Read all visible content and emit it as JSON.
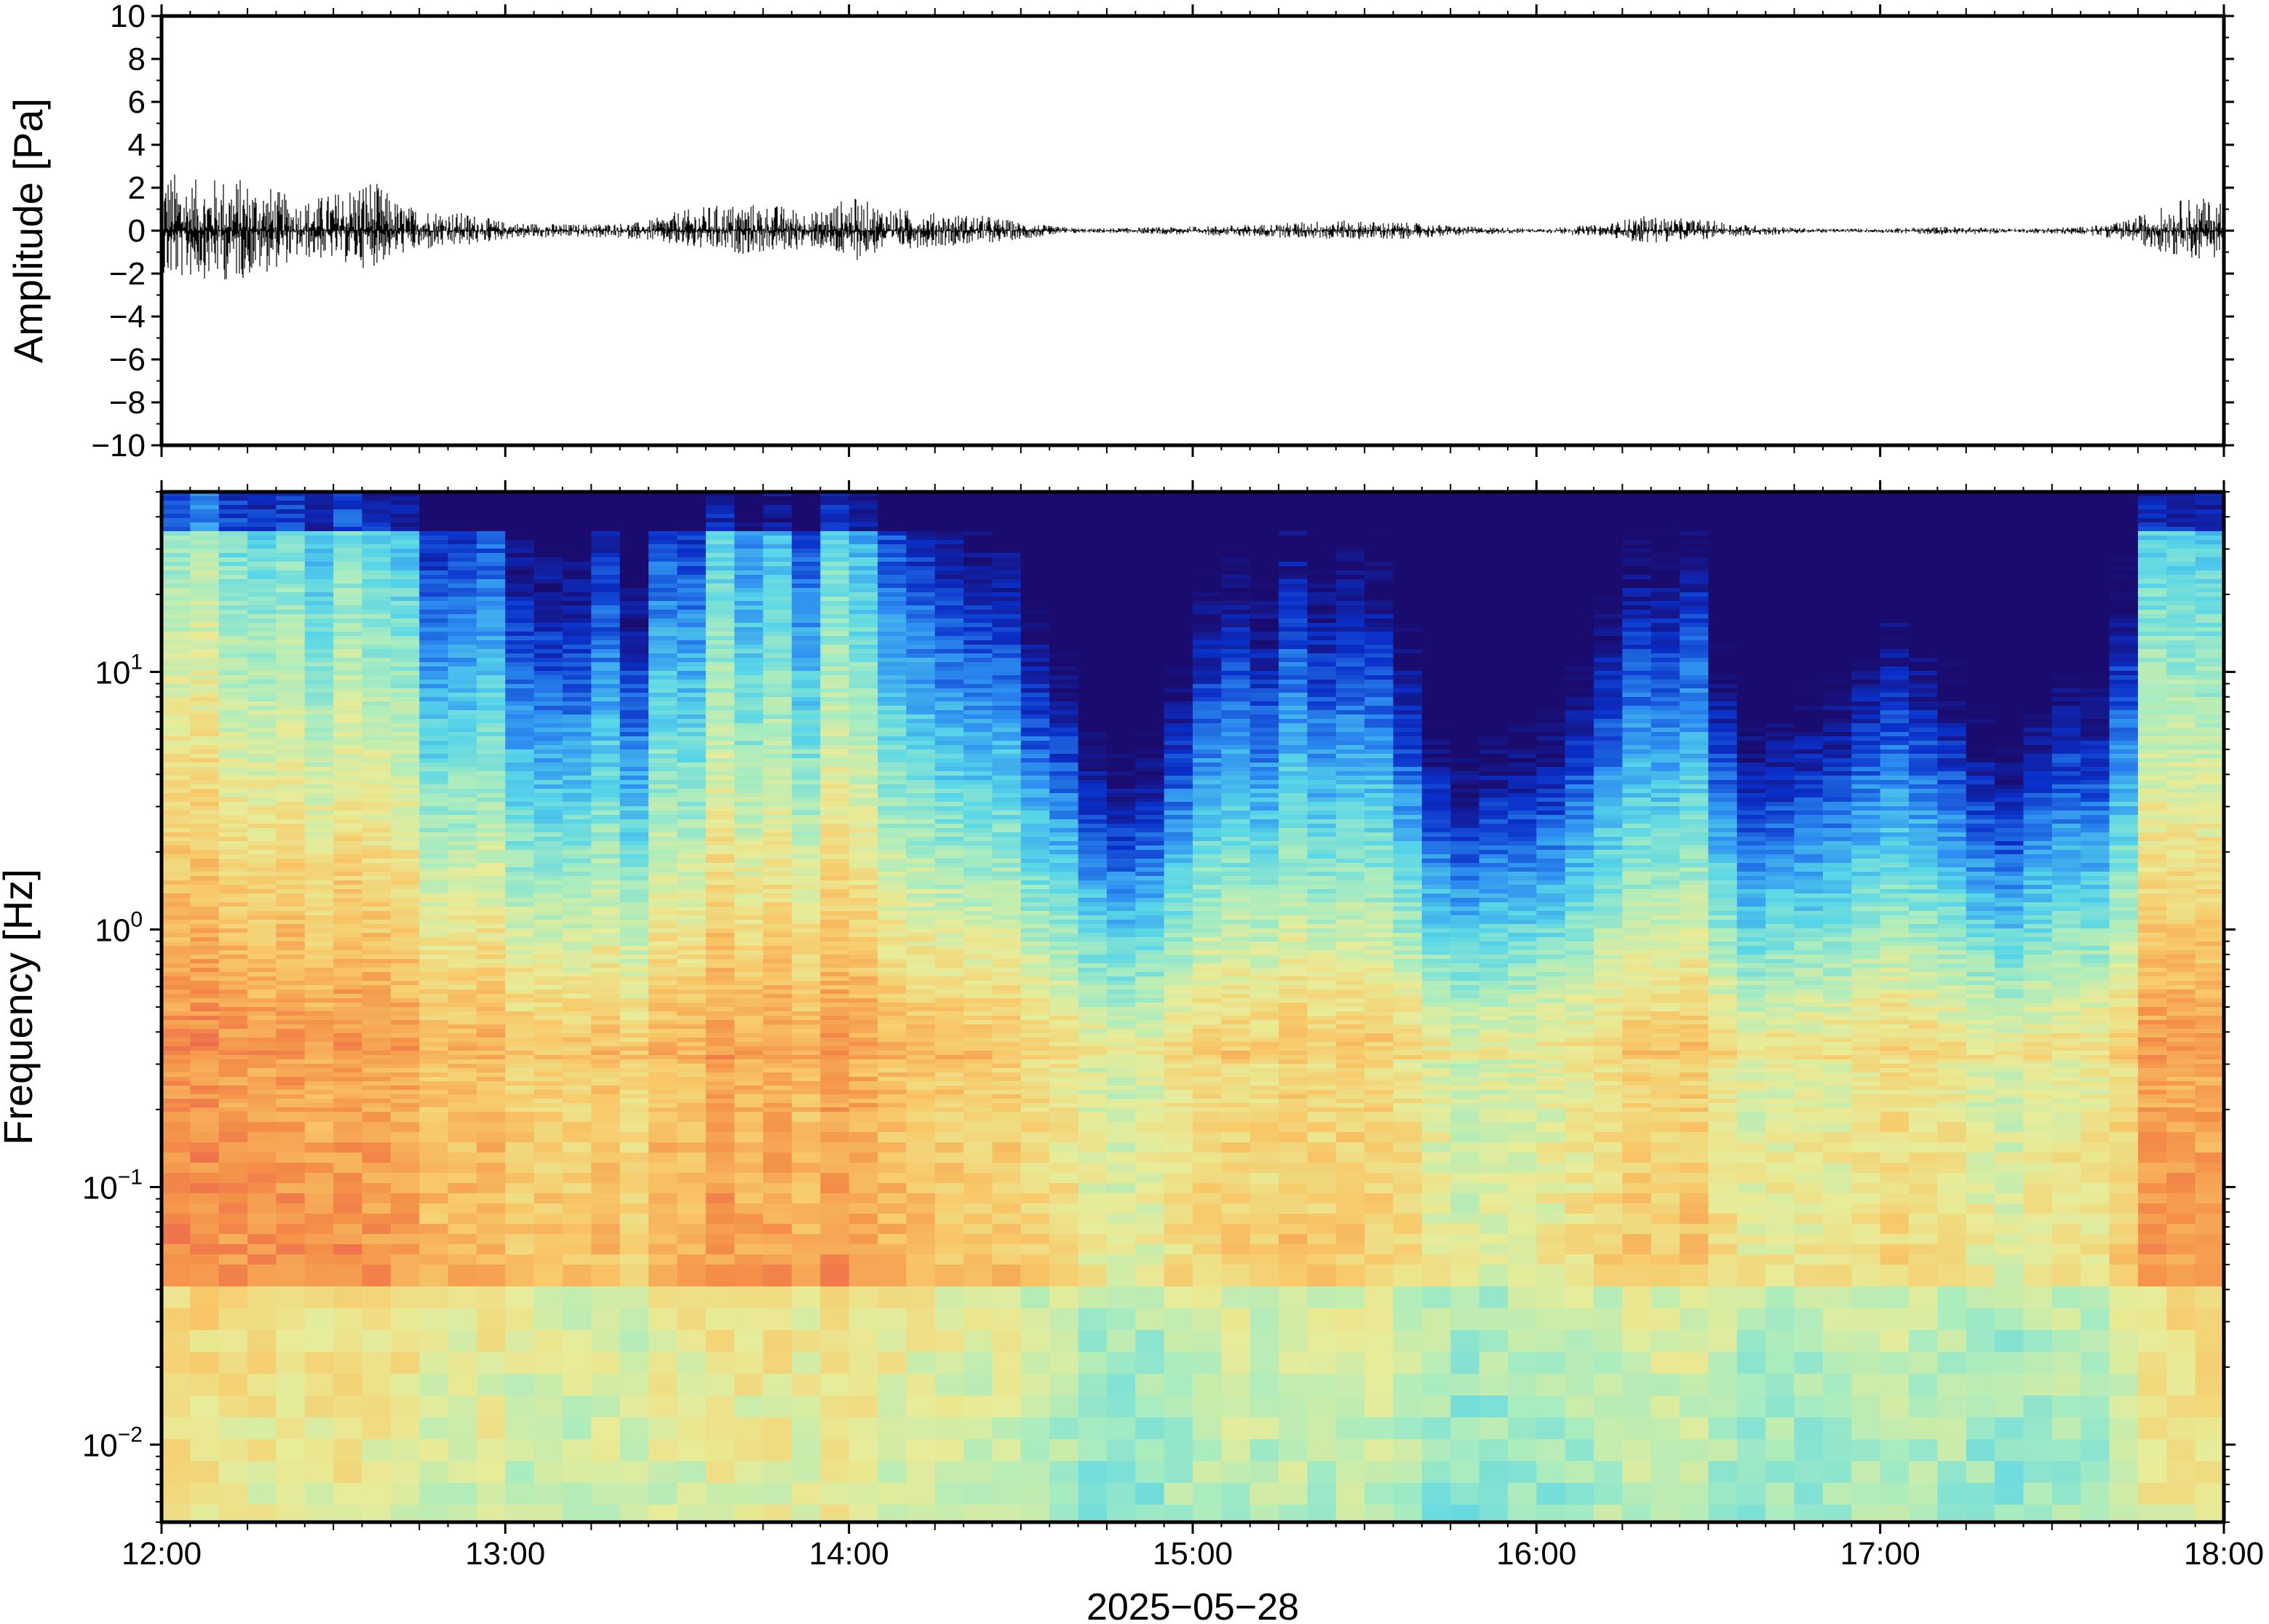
{
  "chart_data": [
    {
      "type": "line",
      "panel": "waveform",
      "ylabel": "Amplitude [Pa]",
      "ylim": [
        -10,
        10
      ],
      "yticks": [
        10,
        8,
        6,
        4,
        2,
        0,
        -2,
        -4,
        -6,
        -8,
        -10
      ],
      "ytick_labels": [
        "10",
        "8",
        "6",
        "4",
        "2",
        "0",
        "−2",
        "−4",
        "−6",
        "−8",
        "−10"
      ],
      "x_range": [
        "12:00",
        "18:00"
      ],
      "series_color": "#000000",
      "envelope": {
        "hours": [
          12.0,
          12.1,
          12.2,
          12.3,
          12.4,
          12.5,
          12.6,
          12.7,
          12.8,
          12.9,
          13.0,
          13.2,
          13.4,
          13.5,
          13.6,
          13.7,
          13.8,
          13.9,
          14.0,
          14.1,
          14.2,
          14.3,
          14.4,
          14.5,
          14.6,
          14.7,
          15.0,
          15.2,
          15.4,
          15.6,
          15.8,
          16.0,
          16.2,
          16.3,
          16.4,
          16.5,
          16.6,
          16.8,
          17.0,
          17.2,
          17.4,
          17.6,
          17.7,
          17.8,
          17.9,
          18.0
        ],
        "max_pa": [
          3.0,
          2.4,
          2.6,
          2.2,
          1.4,
          1.8,
          2.6,
          1.2,
          1.0,
          0.8,
          0.4,
          0.3,
          0.4,
          0.9,
          1.2,
          1.3,
          1.2,
          0.9,
          1.6,
          1.2,
          0.9,
          0.8,
          0.7,
          0.4,
          0.2,
          0.1,
          0.2,
          0.3,
          0.5,
          0.4,
          0.2,
          0.1,
          0.3,
          0.7,
          0.6,
          0.5,
          0.3,
          0.1,
          0.1,
          0.2,
          0.1,
          0.2,
          0.4,
          1.0,
          1.6,
          1.4
        ],
        "min_pa": [
          -2.6,
          -2.2,
          -2.4,
          -2.0,
          -1.3,
          -1.4,
          -1.8,
          -1.1,
          -0.9,
          -0.7,
          -0.4,
          -0.3,
          -0.4,
          -0.8,
          -1.0,
          -1.1,
          -1.0,
          -0.8,
          -1.5,
          -1.0,
          -0.8,
          -0.7,
          -0.6,
          -0.4,
          -0.2,
          -0.1,
          -0.2,
          -0.3,
          -0.4,
          -0.4,
          -0.2,
          -0.1,
          -0.3,
          -0.6,
          -0.5,
          -0.4,
          -0.3,
          -0.1,
          -0.1,
          -0.2,
          -0.1,
          -0.2,
          -0.4,
          -0.9,
          -1.4,
          -1.2
        ]
      }
    },
    {
      "type": "heatmap",
      "panel": "spectrogram",
      "ylabel": "Frequency [Hz]",
      "yscale": "log",
      "ylim_hz": [
        0.005,
        50
      ],
      "yticks_hz": [
        10,
        1,
        0.1,
        0.01
      ],
      "ytick_labels": [
        {
          "base": "10",
          "exp": "1"
        },
        {
          "base": "10",
          "exp": "0"
        },
        {
          "base": "10",
          "exp": "−1"
        },
        {
          "base": "10",
          "exp": "−2"
        }
      ],
      "colormap": "jet",
      "colormap_colors": [
        "#1a0c6e",
        "#0a2fc8",
        "#2c8cf0",
        "#58d6e8",
        "#a8ecc0",
        "#e8ec98",
        "#f8c868",
        "#f49048",
        "#e85050"
      ],
      "activity_profile": {
        "hours": [
          12.0,
          12.2,
          12.4,
          12.6,
          12.8,
          13.0,
          13.2,
          13.4,
          13.5,
          13.7,
          13.9,
          14.0,
          14.2,
          14.4,
          14.6,
          14.7,
          14.9,
          15.0,
          15.2,
          15.4,
          15.6,
          15.7,
          15.9,
          16.1,
          16.2,
          16.3,
          16.5,
          16.6,
          16.8,
          17.0,
          17.2,
          17.4,
          17.6,
          17.7,
          17.8,
          17.9,
          18.0
        ],
        "level": [
          1.0,
          1.0,
          0.9,
          0.9,
          0.7,
          0.6,
          0.55,
          0.55,
          0.75,
          0.8,
          0.75,
          0.85,
          0.7,
          0.55,
          0.45,
          0.2,
          0.15,
          0.35,
          0.45,
          0.5,
          0.45,
          0.2,
          0.1,
          0.2,
          0.4,
          0.55,
          0.5,
          0.25,
          0.2,
          0.4,
          0.25,
          0.15,
          0.3,
          0.5,
          0.9,
          0.95,
          0.85
        ]
      }
    }
  ],
  "x_axis": {
    "tick_labels": [
      "12:00",
      "13:00",
      "14:00",
      "15:00",
      "16:00",
      "17:00",
      "18:00"
    ],
    "tick_hours": [
      12,
      13,
      14,
      15,
      16,
      17,
      18
    ],
    "date_label": "2025−05−28"
  }
}
